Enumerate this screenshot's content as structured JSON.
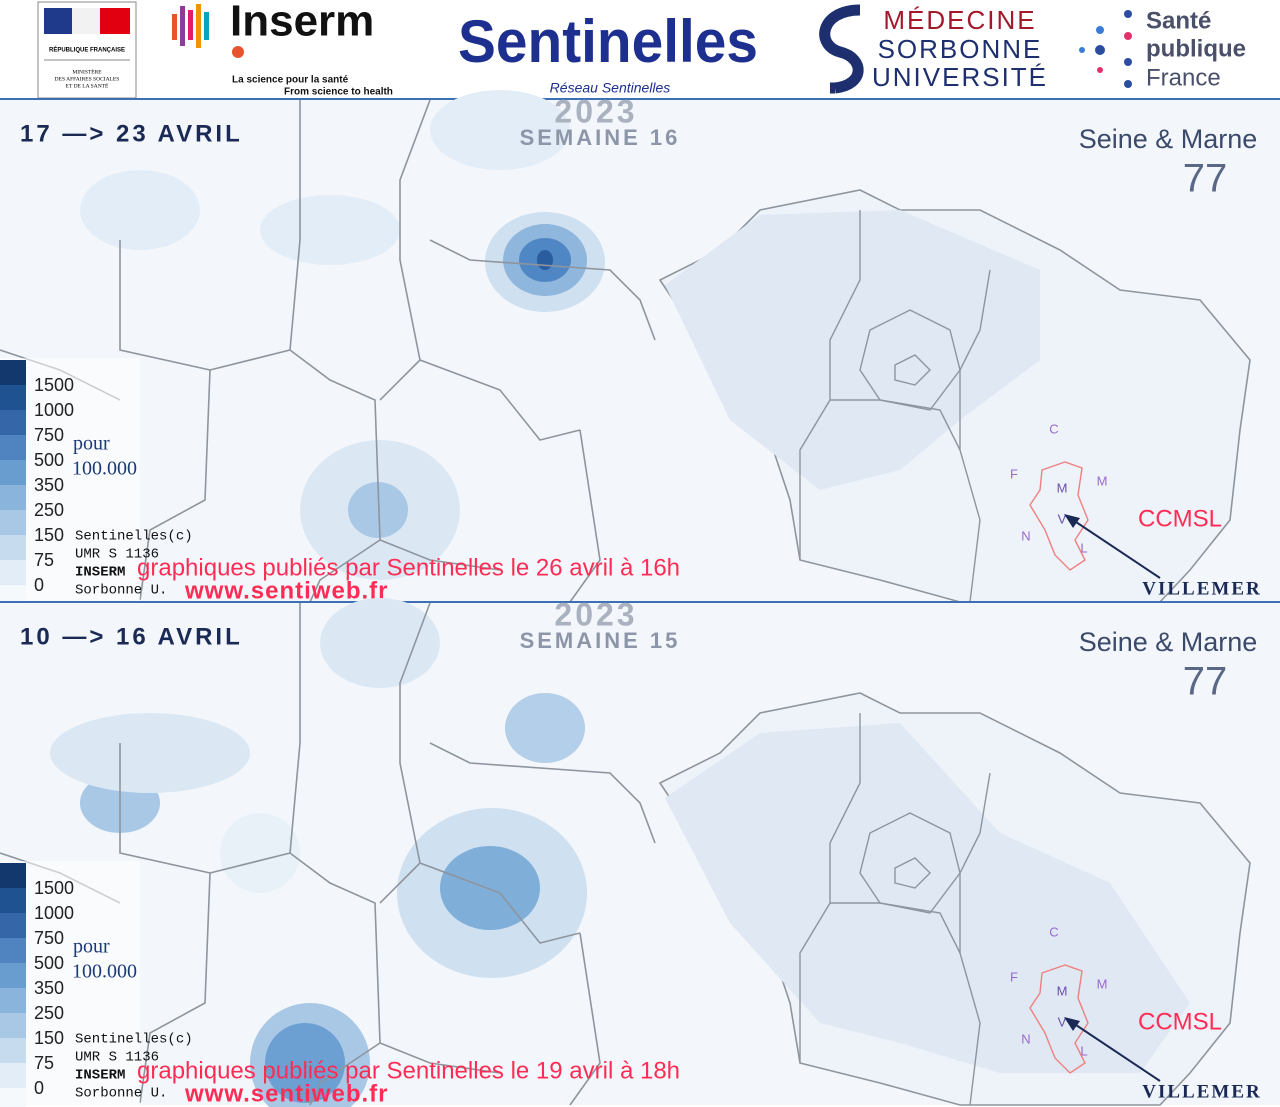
{
  "header": {
    "republique": "RÉPUBLIQUE FRANÇAISE",
    "ministere": [
      "MINISTÈRE",
      "DES AFFAIRES SOCIALES",
      "ET DE LA SANTÉ"
    ],
    "inserm": "Inserm",
    "inserm_tagline": "La science pour la santé",
    "inserm_tagline_en": "From science to health",
    "sentinelles": "Sentinelles",
    "sentinelles_sub": "Réseau Sentinelles",
    "sorbonne": [
      "MÉDECINE",
      "SORBONNE",
      "UNIVERSITÉ"
    ],
    "spf": [
      "Santé",
      "publique",
      "France"
    ]
  },
  "panels": [
    {
      "dates": "17 —> 23 AVRIL",
      "year": "2023",
      "week": "SEMAINE 16",
      "department": "Seine & Marne",
      "department_number": "77",
      "legend": {
        "levels": [
          1500,
          1000,
          750,
          500,
          350,
          250,
          150,
          75,
          0
        ],
        "unit": "pour",
        "unit_base": "100.000"
      },
      "credits": [
        "Sentinelles(c)",
        "UMR S 1136",
        "INSERM",
        "Sorbonne U."
      ],
      "published": "graphiques publiés par Sentinelles le 26 avril à 16h",
      "website": "www.sentiweb.fr",
      "communes": [
        "C",
        "F",
        "M",
        "M",
        "V",
        "N",
        "L"
      ],
      "area": "CCMSL",
      "commune": "VILLEMER"
    },
    {
      "dates": "10 —> 16 AVRIL",
      "year": "2023",
      "week": "SEMAINE 15",
      "department": "Seine & Marne",
      "department_number": "77",
      "legend": {
        "levels": [
          1500,
          1000,
          750,
          500,
          350,
          250,
          150,
          75,
          0
        ],
        "unit": "pour",
        "unit_base": "100.000"
      },
      "credits": [
        "Sentinelles(c)",
        "UMR S 1136",
        "INSERM",
        "Sorbonne U."
      ],
      "published": "graphiques publiés par Sentinelles le 19 avril à 18h",
      "website": "www.sentiweb.fr",
      "communes": [
        "C",
        "F",
        "M",
        "M",
        "V",
        "N",
        "L"
      ],
      "area": "CCMSL",
      "commune": "VILLEMER"
    }
  ]
}
